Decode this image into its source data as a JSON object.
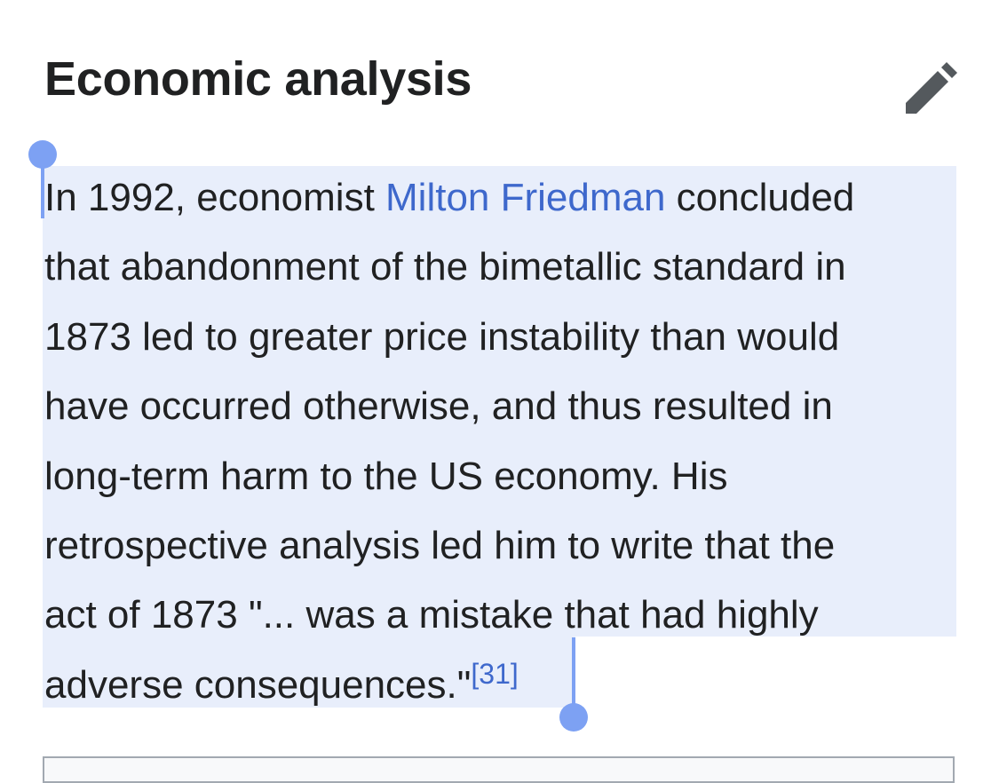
{
  "section": {
    "heading": "Economic analysis",
    "edit_icon": "pencil-icon"
  },
  "paragraph": {
    "lines": [
      {
        "before": "In 1992, economist ",
        "link": "Milton Friedman",
        "after": " concluded"
      },
      "that abandonment of the bimetallic standard in",
      "1873 led to greater price instability than would",
      "have occurred otherwise, and thus resulted in",
      "long-term harm to the US economy. His",
      "retrospective analysis led him to write that the",
      "act of 1873 \"... was a mistake that had highly",
      {
        "text": "adverse consequences.\"",
        "citation": "[31]"
      }
    ]
  },
  "colors": {
    "text": "#202122",
    "link": "#3e68cc",
    "selection": "#e8eefb",
    "selection_handle": "#7da1f3",
    "edit_icon": "#54595d"
  }
}
